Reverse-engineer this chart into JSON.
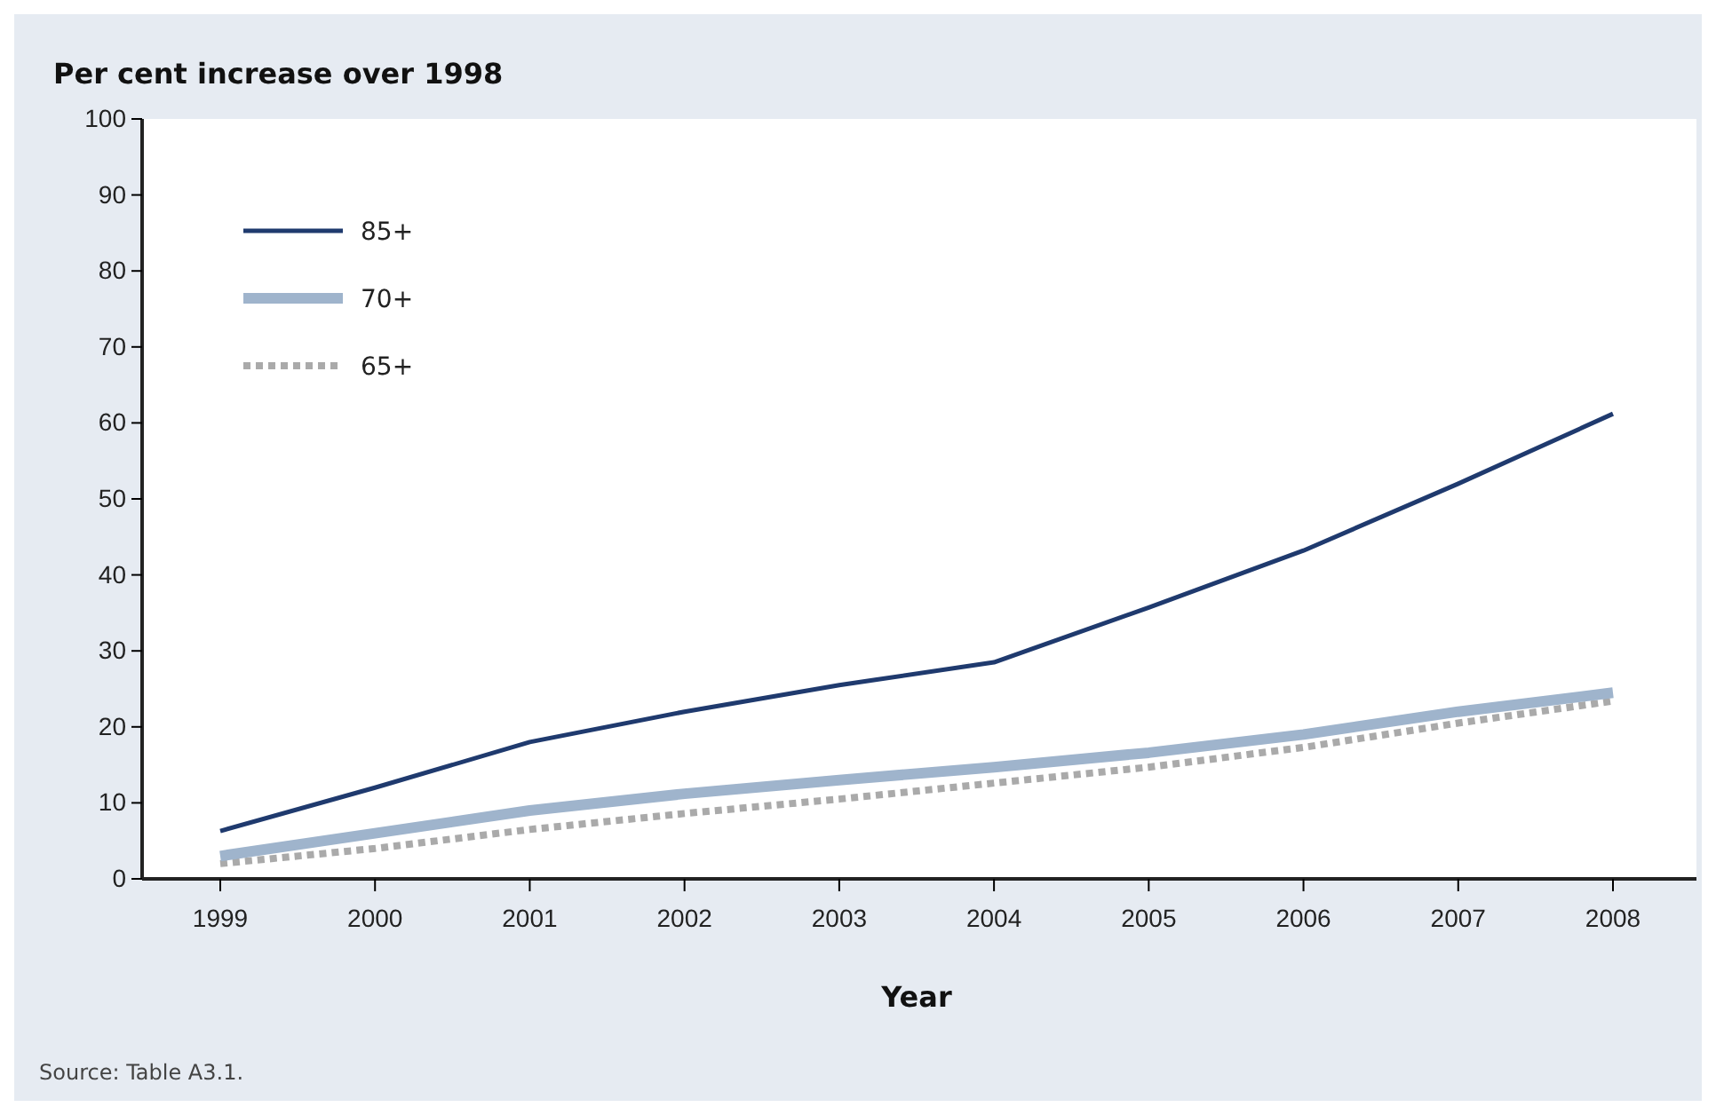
{
  "chart_data": {
    "type": "line",
    "title": "Per cent increase over 1998",
    "xlabel": "Year",
    "annotations": [
      "Source: Table A3.1."
    ],
    "categories": [
      "1999",
      "2000",
      "2001",
      "2002",
      "2003",
      "2004",
      "2005",
      "2006",
      "2007",
      "2008"
    ],
    "series": [
      {
        "name": "85+",
        "color": "#1f3a6e",
        "line_style": "solid",
        "values": [
          6.3,
          12,
          18,
          22,
          25.5,
          28.5,
          35.7,
          43.2,
          52,
          61.2
        ]
      },
      {
        "name": "70+",
        "color": "#9fb4cc",
        "line_style": "solid",
        "values": [
          3,
          6,
          9,
          11.2,
          13,
          14.7,
          16.6,
          19,
          22,
          24.5
        ]
      },
      {
        "name": "65+",
        "color": "#aaaaaa",
        "line_style": "dotted",
        "values": [
          2,
          4,
          6.5,
          8.6,
          10.5,
          12.6,
          14.7,
          17.3,
          20.5,
          23.4
        ]
      }
    ],
    "ylim": [
      0,
      100
    ],
    "yticks": [
      0,
      10,
      20,
      30,
      40,
      50,
      60,
      70,
      80,
      90,
      100
    ],
    "grid": false,
    "legend": "top left",
    "marker": "none"
  }
}
